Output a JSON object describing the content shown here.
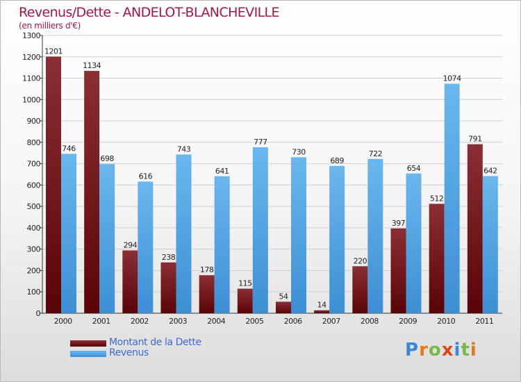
{
  "title": "Revenus/Dette - ANDELOT-BLANCHEVILLE",
  "subtitle": "(en milliers d'€)",
  "colors": {
    "dette_light": "#8a2f33",
    "dette_dark": "#5a0408",
    "revenus_light": "#6ab7ee",
    "revenus_dark": "#3c8fd4",
    "title": "#a31547",
    "legend_text": "#3b6ad8"
  },
  "legend": [
    {
      "label": "Montant de la Dette",
      "color": "#6a0d10"
    },
    {
      "label": "Revenus",
      "color": "#4ea3e4"
    }
  ],
  "logo": {
    "letters": [
      "P",
      "r",
      "o",
      "x",
      "i",
      "t",
      "i"
    ],
    "colors": [
      "#3a88d8",
      "#e07a1a",
      "#7ab84a",
      "#e0451a",
      "#3a88d8",
      "#7ab84a",
      "#e07a1a"
    ]
  },
  "chart_data": {
    "type": "bar",
    "title": "Revenus/Dette - ANDELOT-BLANCHEVILLE",
    "ylabel": "(en milliers d'€)",
    "xlabel": "",
    "ylim": [
      0,
      1300
    ],
    "yticks": [
      0,
      100,
      200,
      300,
      400,
      500,
      600,
      700,
      800,
      900,
      1000,
      1100,
      1200,
      1300
    ],
    "grid": true,
    "categories": [
      "2000",
      "2001",
      "2002",
      "2003",
      "2004",
      "2005",
      "2006",
      "2007",
      "2008",
      "2009",
      "2010",
      "2011"
    ],
    "series": [
      {
        "name": "Montant de la Dette",
        "values": [
          1201,
          1134,
          294,
          238,
          178,
          115,
          54,
          14,
          220,
          397,
          512,
          791
        ]
      },
      {
        "name": "Revenus",
        "values": [
          746,
          698,
          616,
          743,
          641,
          777,
          730,
          689,
          722,
          654,
          1074,
          642
        ]
      }
    ]
  }
}
